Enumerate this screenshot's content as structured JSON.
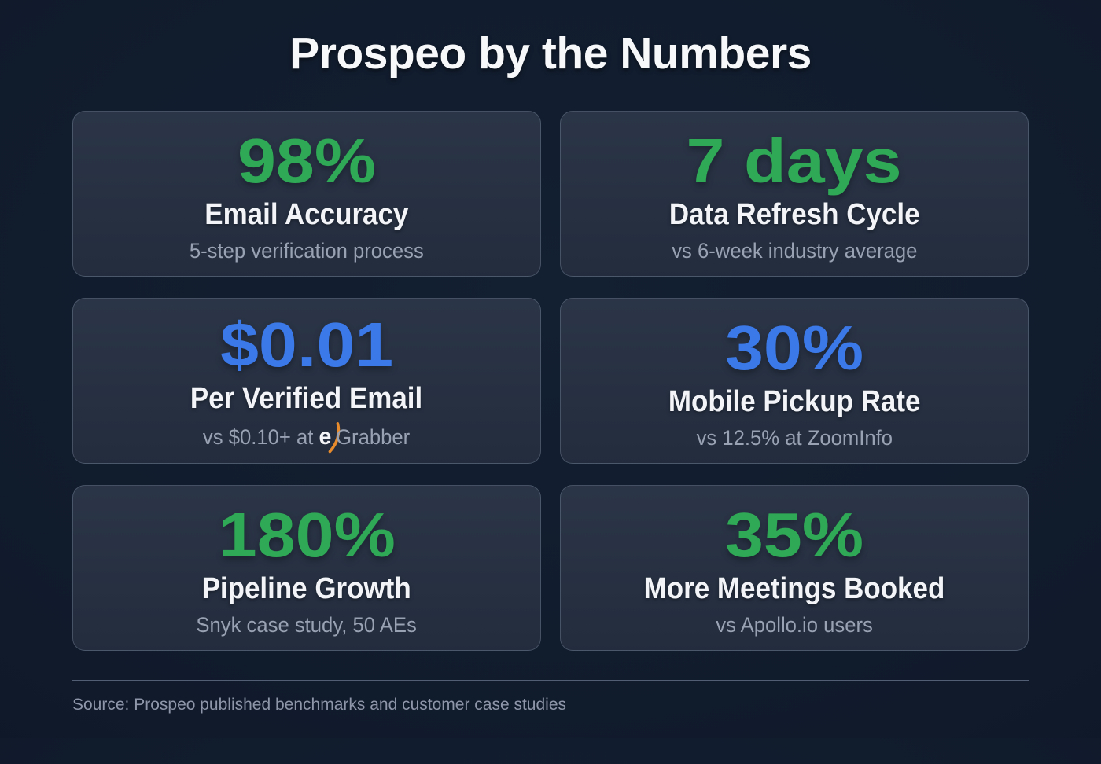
{
  "title": "Prospeo by the Numbers",
  "colors": {
    "green": "#2fa956",
    "blue": "#3b79e8",
    "swoosh_orange": "#e78b2d"
  },
  "chart_data": {
    "type": "table",
    "title": "Prospeo by the Numbers",
    "stats": [
      {
        "value": "98%",
        "label": "Email Accuracy",
        "note": "5-step verification process",
        "color": "green"
      },
      {
        "value": "7 days",
        "label": "Data Refresh Cycle",
        "note": "vs 6-week industry average",
        "color": "green"
      },
      {
        "value": "$0.01",
        "label": "Per Verified Email",
        "note": "vs $0.10+ at eGrabber",
        "color": "blue",
        "note_parts": [
          {
            "text": "vs $0.10+ at ",
            "style": "plain"
          },
          {
            "text": "e",
            "style": "brand-e"
          },
          {
            "text": "",
            "style": "swoosh"
          },
          {
            "text": "Grabber",
            "style": "plain"
          }
        ]
      },
      {
        "value": "30%",
        "label": "Mobile Pickup Rate",
        "note": "vs 12.5% at ZoomInfo",
        "color": "blue"
      },
      {
        "value": "180%",
        "label": "Pipeline Growth",
        "note": "Snyk case study, 50 AEs",
        "color": "green"
      },
      {
        "value": "35%",
        "label": "More Meetings Booked",
        "note": "vs Apollo.io users",
        "color": "green"
      }
    ]
  },
  "footer": {
    "source": "Source: Prospeo published benchmarks and customer case studies"
  }
}
